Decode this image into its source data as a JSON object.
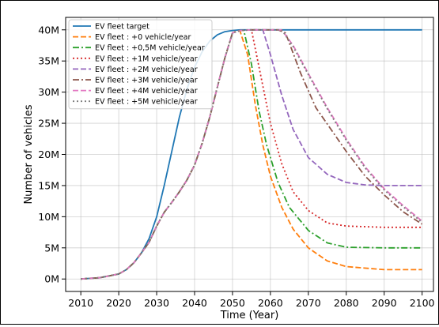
{
  "chart_data": {
    "type": "line",
    "xlabel": "Time (Year)",
    "ylabel": "Number of vehicles",
    "xlim": [
      2006,
      2103
    ],
    "ylim": [
      -2,
      42
    ],
    "xticks": [
      2010,
      2020,
      2030,
      2040,
      2050,
      2060,
      2070,
      2080,
      2090,
      2100
    ],
    "xtick_labels": [
      "2010",
      "2020",
      "2030",
      "2040",
      "2050",
      "2060",
      "2070",
      "2080",
      "2090",
      "2100"
    ],
    "yticks": [
      0,
      5,
      10,
      15,
      20,
      25,
      30,
      35,
      40
    ],
    "ytick_labels": [
      "0M",
      "5M",
      "10M",
      "15M",
      "20M",
      "25M",
      "30M",
      "35M",
      "40M"
    ],
    "y_unit": "million vehicles",
    "grid": true,
    "legend_position": "top-left",
    "series": [
      {
        "name": "EV fleet target",
        "color": "#1f77b4",
        "dash": "solid",
        "x": [
          2010,
          2015,
          2020,
          2022,
          2024,
          2026,
          2028,
          2030,
          2032,
          2034,
          2036,
          2038,
          2040,
          2042,
          2044,
          2046,
          2048,
          2050,
          2052,
          2055,
          2060,
          2070,
          2080,
          2090,
          2100
        ],
        "y": [
          0,
          0.2,
          0.8,
          1.5,
          2.6,
          4.2,
          6.5,
          10.0,
          15.0,
          20.5,
          26.0,
          30.5,
          34.0,
          36.5,
          38.2,
          39.2,
          39.7,
          39.9,
          40,
          40,
          40,
          40,
          40,
          40,
          40
        ]
      },
      {
        "name": "EV fleet : +0 vehicle/year",
        "color": "#ff7f0e",
        "dash": "dashed",
        "x": [
          2010,
          2015,
          2020,
          2022,
          2024,
          2026,
          2028,
          2030,
          2032,
          2034,
          2036,
          2038,
          2040,
          2042,
          2044,
          2046,
          2048,
          2050,
          2051,
          2052,
          2054,
          2056,
          2058,
          2060,
          2063,
          2066,
          2070,
          2075,
          2080,
          2090,
          2100
        ],
        "y": [
          0,
          0.2,
          0.8,
          1.5,
          2.6,
          4.2,
          5.9,
          8.5,
          10.7,
          12.3,
          14.0,
          15.9,
          18.3,
          21.8,
          26.0,
          30.8,
          35.5,
          39.5,
          39.8,
          39.8,
          36.0,
          28.0,
          21.5,
          16.5,
          11.5,
          8.0,
          5.0,
          2.9,
          2.0,
          1.5,
          1.5
        ]
      },
      {
        "name": "EV fleet : +0,5M vehicle/year",
        "color": "#2ca02c",
        "dash": "dashdot",
        "x": [
          2010,
          2015,
          2020,
          2022,
          2024,
          2026,
          2028,
          2030,
          2032,
          2034,
          2036,
          2038,
          2040,
          2042,
          2044,
          2046,
          2048,
          2050,
          2052,
          2053,
          2055,
          2057,
          2059,
          2062,
          2065,
          2070,
          2075,
          2080,
          2090,
          2100
        ],
        "y": [
          0,
          0.2,
          0.8,
          1.5,
          2.6,
          4.2,
          5.9,
          8.5,
          10.7,
          12.3,
          14.0,
          15.9,
          18.3,
          21.8,
          26.0,
          30.8,
          35.5,
          39.5,
          39.9,
          39.9,
          34.5,
          27.0,
          21.5,
          15.5,
          11.5,
          7.8,
          5.8,
          5.1,
          5.0,
          5.0
        ]
      },
      {
        "name": "EV fleet : +1M vehicle/year",
        "color": "#d62728",
        "dash": "dotted",
        "x": [
          2010,
          2015,
          2020,
          2022,
          2024,
          2026,
          2028,
          2030,
          2032,
          2034,
          2036,
          2038,
          2040,
          2042,
          2044,
          2046,
          2048,
          2050,
          2052,
          2054,
          2055,
          2057,
          2060,
          2063,
          2066,
          2070,
          2075,
          2080,
          2090,
          2100
        ],
        "y": [
          0,
          0.2,
          0.8,
          1.5,
          2.6,
          4.2,
          5.9,
          8.5,
          10.7,
          12.3,
          14.0,
          15.9,
          18.3,
          21.8,
          26.0,
          30.8,
          35.5,
          39.5,
          39.9,
          40,
          40,
          34.0,
          25.0,
          18.5,
          14.0,
          11.0,
          9.0,
          8.5,
          8.3,
          8.3
        ]
      },
      {
        "name": "EV fleet : +2M vehicle/year",
        "color": "#9467bd",
        "dash": "dashed",
        "x": [
          2010,
          2015,
          2020,
          2022,
          2024,
          2026,
          2028,
          2030,
          2032,
          2034,
          2036,
          2038,
          2040,
          2042,
          2044,
          2046,
          2048,
          2050,
          2052,
          2055,
          2058,
          2060,
          2063,
          2066,
          2070,
          2075,
          2080,
          2085,
          2090,
          2100
        ],
        "y": [
          0,
          0.2,
          0.8,
          1.5,
          2.6,
          4.2,
          5.9,
          8.5,
          10.7,
          12.3,
          14.0,
          15.9,
          18.3,
          21.8,
          26.0,
          30.8,
          35.5,
          39.5,
          39.9,
          40,
          40,
          36.0,
          29.5,
          24.0,
          19.5,
          16.8,
          15.5,
          15.1,
          15.0,
          15.0
        ]
      },
      {
        "name": "EV fleet : +3M vehicle/year",
        "color": "#8c564b",
        "dash": "dashdot",
        "x": [
          2010,
          2015,
          2020,
          2022,
          2024,
          2026,
          2028,
          2030,
          2032,
          2034,
          2036,
          2038,
          2040,
          2042,
          2044,
          2046,
          2048,
          2050,
          2052,
          2055,
          2060,
          2062,
          2064,
          2068,
          2072,
          2076,
          2080,
          2085,
          2090,
          2095,
          2100
        ],
        "y": [
          0,
          0.2,
          0.8,
          1.5,
          2.6,
          4.2,
          5.9,
          8.5,
          10.7,
          12.3,
          14.0,
          15.9,
          18.3,
          21.8,
          26.0,
          30.8,
          35.5,
          39.5,
          39.9,
          40,
          40,
          40,
          39.5,
          33.0,
          27.5,
          24.0,
          20.5,
          16.5,
          13.5,
          10.8,
          8.8
        ]
      },
      {
        "name": "EV fleet : +4M vehicle/year",
        "color": "#e377c2",
        "dash": "dashed",
        "x": [
          2010,
          2015,
          2020,
          2022,
          2024,
          2026,
          2028,
          2030,
          2032,
          2034,
          2036,
          2038,
          2040,
          2042,
          2044,
          2046,
          2048,
          2050,
          2052,
          2055,
          2060,
          2063,
          2066,
          2070,
          2075,
          2080,
          2085,
          2090,
          2095,
          2100
        ],
        "y": [
          0,
          0.2,
          0.8,
          1.5,
          2.6,
          4.2,
          5.9,
          8.5,
          10.7,
          12.3,
          14.0,
          15.9,
          18.3,
          21.8,
          26.0,
          30.8,
          35.5,
          39.5,
          39.9,
          40,
          40,
          40,
          37.5,
          33.0,
          27.5,
          22.5,
          18.0,
          14.5,
          11.8,
          9.3
        ]
      },
      {
        "name": "EV fleet : +5M vehicle/year",
        "color": "#7f7f7f",
        "dash": "dotted",
        "x": [
          2010,
          2015,
          2020,
          2022,
          2024,
          2026,
          2028,
          2030,
          2032,
          2034,
          2036,
          2038,
          2040,
          2042,
          2044,
          2046,
          2048,
          2050,
          2052,
          2055,
          2060,
          2063,
          2066,
          2070,
          2075,
          2080,
          2085,
          2090,
          2095,
          2100
        ],
        "y": [
          0,
          0.2,
          0.8,
          1.5,
          2.6,
          4.2,
          5.9,
          8.5,
          10.7,
          12.3,
          14.0,
          15.9,
          18.3,
          21.8,
          26.0,
          30.8,
          35.5,
          39.5,
          39.9,
          40,
          40,
          40,
          37.3,
          32.8,
          27.3,
          22.3,
          17.8,
          14.3,
          11.6,
          9.1
        ]
      }
    ]
  }
}
